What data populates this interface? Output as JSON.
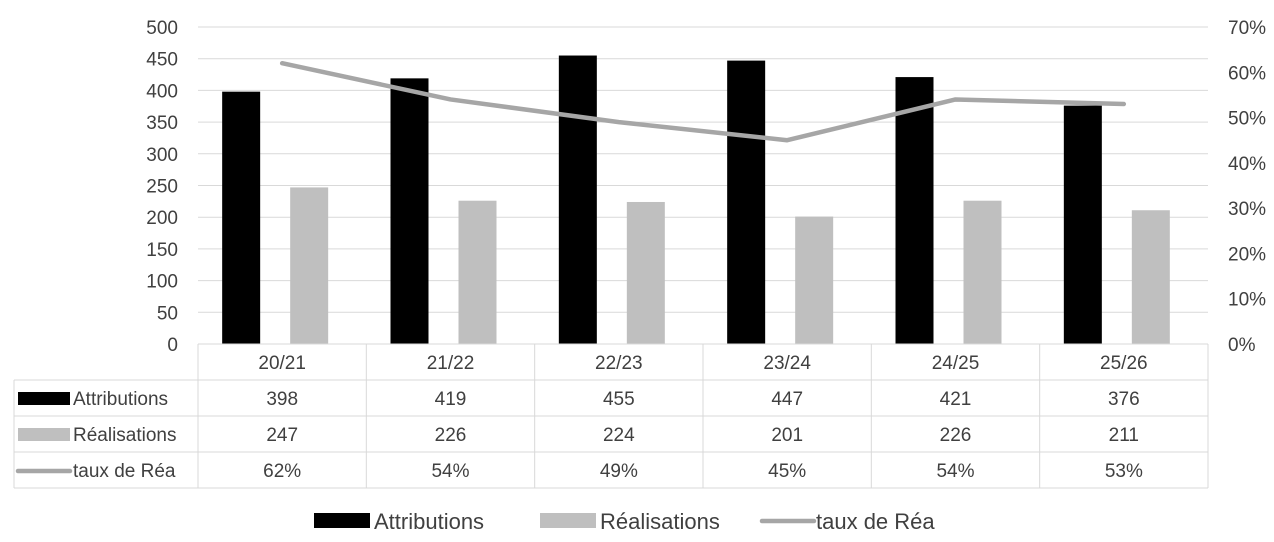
{
  "chart_data": {
    "type": "bar",
    "categories": [
      "20/21",
      "21/22",
      "22/23",
      "23/24",
      "24/25",
      "25/26"
    ],
    "series": [
      {
        "name": "Attributions",
        "kind": "bar",
        "axis": "left",
        "color": "#000000",
        "values": [
          398,
          419,
          455,
          447,
          421,
          376
        ],
        "labels": [
          "398",
          "419",
          "455",
          "447",
          "421",
          "376"
        ]
      },
      {
        "name": "Réalisations",
        "kind": "bar",
        "axis": "left",
        "color": "#bfbfbf",
        "values": [
          247,
          226,
          224,
          201,
          226,
          211
        ],
        "labels": [
          "247",
          "226",
          "224",
          "201",
          "226",
          "211"
        ]
      },
      {
        "name": "taux de Réa",
        "kind": "line",
        "axis": "right",
        "color": "#a6a6a6",
        "values": [
          0.62,
          0.54,
          0.49,
          0.45,
          0.54,
          0.53
        ],
        "labels": [
          "62%",
          "54%",
          "49%",
          "45%",
          "54%",
          "53%"
        ]
      }
    ],
    "y_left": {
      "min": 0,
      "max": 500,
      "step": 50,
      "ticks": [
        "0",
        "50",
        "100",
        "150",
        "200",
        "250",
        "300",
        "350",
        "400",
        "450",
        "500"
      ]
    },
    "y_right": {
      "min": 0,
      "max": 0.7,
      "step": 0.1,
      "ticks": [
        "0%",
        "10%",
        "20%",
        "30%",
        "40%",
        "50%",
        "60%",
        "70%"
      ]
    },
    "grid": true,
    "legend": "bottom",
    "data_table": true
  }
}
